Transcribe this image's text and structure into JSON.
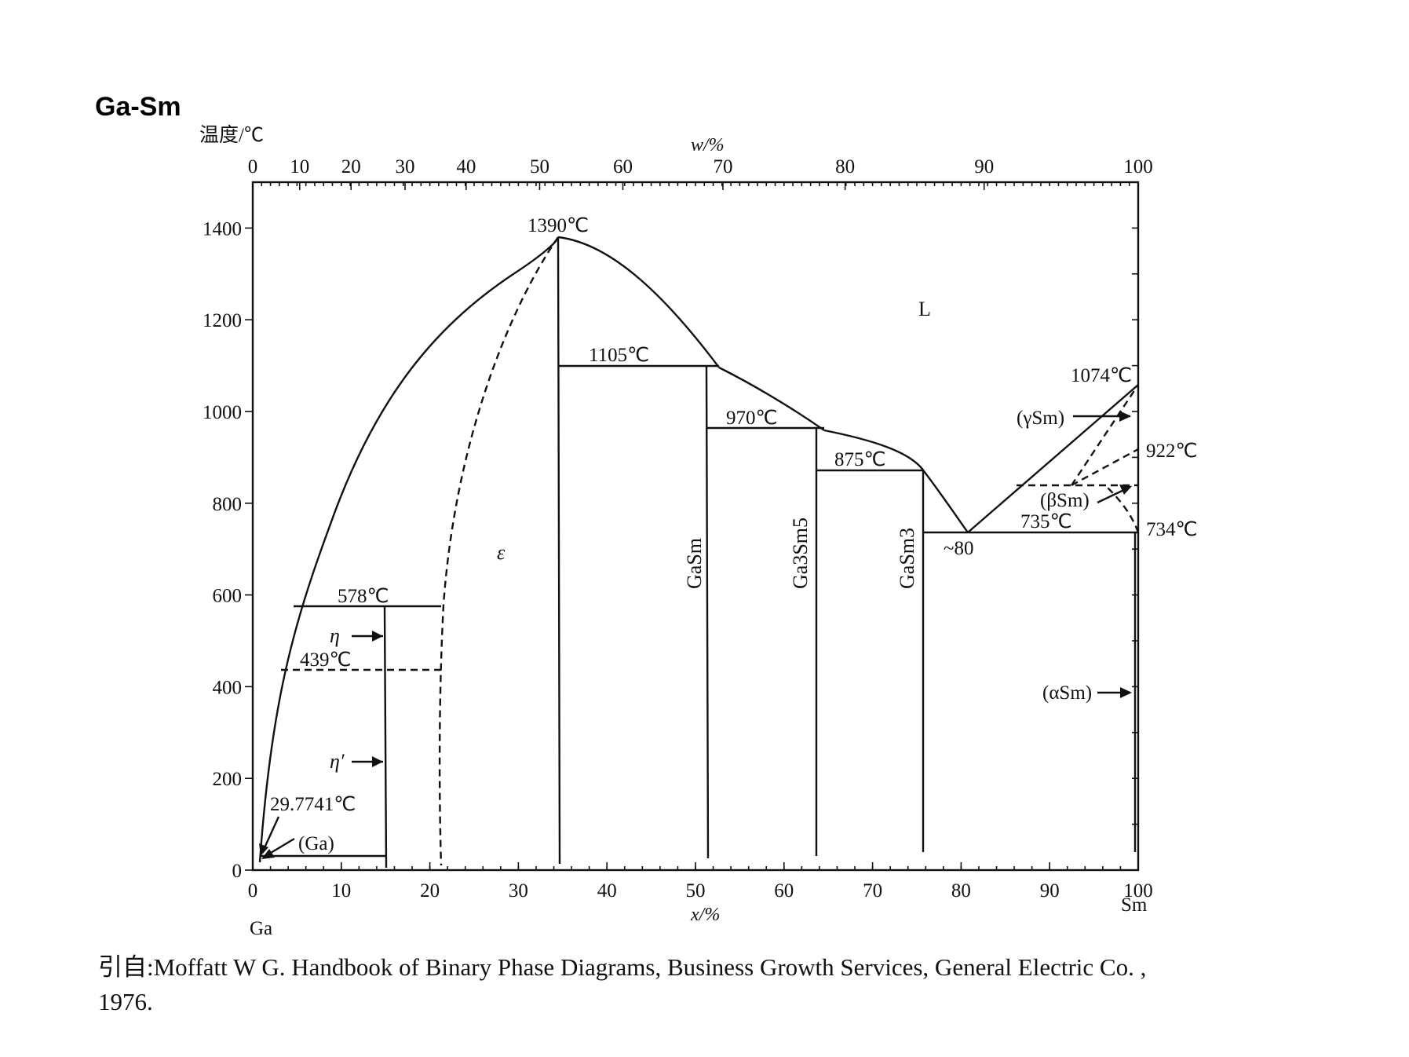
{
  "title": "Ga-Sm",
  "y_axis_label": "温度/℃",
  "top_axis_label": "w/%",
  "bottom_axis_label": "x/%",
  "left_element": "Ga",
  "right_element": "Sm",
  "y_ticks": [
    "0",
    "200",
    "400",
    "600",
    "800",
    "1000",
    "1200",
    "1400"
  ],
  "x_ticks": [
    "0",
    "10",
    "20",
    "30",
    "40",
    "50",
    "60",
    "70",
    "80",
    "90",
    "100"
  ],
  "w_ticks": [
    "0",
    "10",
    "20",
    "30",
    "40",
    "50",
    "60",
    "70",
    "80",
    "90",
    "100"
  ],
  "phase_labels": {
    "liquid": "L",
    "epsilon": "ε",
    "gasm": "GaSm",
    "ga3sm5": "Ga3Sm5",
    "gasm3": "GaSm3",
    "eta": "η",
    "eta_prime": "η′",
    "ga": "(Ga)",
    "gamma_sm": "(γSm)",
    "beta_sm": "(βSm)",
    "alpha_sm": "(αSm)"
  },
  "temperature_labels": {
    "t1390": "1390℃",
    "t1105": "1105℃",
    "t970": "970℃",
    "t875": "875℃",
    "t578": "578℃",
    "t439": "439℃",
    "t29": "29.7741℃",
    "t1074": "1074℃",
    "t922": "922℃",
    "t735": "735℃",
    "t734": "734℃",
    "eutectic": "~80"
  },
  "caption_line1": "引自:Moffatt W G. Handbook of Binary Phase Diagrams, Business Growth Services, General Electric Co. ,",
  "caption_line2": "1976.",
  "chart_data": {
    "type": "phase-diagram",
    "system": "Ga-Sm",
    "x_unit": "x/% (Sm)",
    "y_unit": "℃",
    "xlim": [
      0,
      100
    ],
    "ylim": [
      0,
      1500
    ],
    "invariant_temperatures_C": [
      1390,
      1105,
      970,
      875,
      578,
      439,
      29.7741,
      1074,
      922,
      735,
      734
    ],
    "compounds_x": [
      {
        "name": "GaSm",
        "x": 50
      },
      {
        "name": "Ga3Sm5",
        "x": 62.5
      },
      {
        "name": "GaSm3",
        "x": 75
      }
    ],
    "eutectic": {
      "x": 80,
      "T": 735
    }
  }
}
